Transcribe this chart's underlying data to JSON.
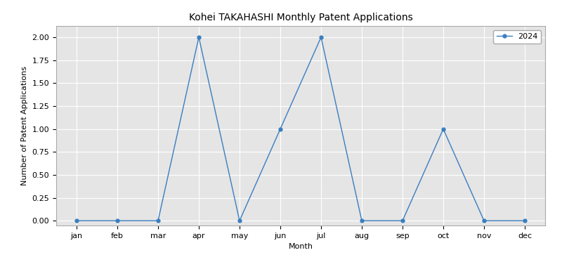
{
  "title": "Kohei TAKAHASHI Monthly Patent Applications",
  "xlabel": "Month",
  "ylabel": "Number of Patent Applications",
  "months": [
    "jan",
    "feb",
    "mar",
    "apr",
    "may",
    "jun",
    "jul",
    "aug",
    "sep",
    "oct",
    "nov",
    "dec"
  ],
  "values_2024": [
    0,
    0,
    0,
    2,
    0,
    1,
    2,
    0,
    0,
    1,
    0,
    0
  ],
  "line_color": "#3a7ebf",
  "marker": "o",
  "legend_label": "2024",
  "ylim": [
    -0.05,
    2.12
  ],
  "yticks": [
    0.0,
    0.25,
    0.5,
    0.75,
    1.0,
    1.25,
    1.5,
    1.75,
    2.0
  ],
  "figsize": [
    8.0,
    3.73
  ],
  "dpi": 100,
  "plot_bg_color": "#e5e5e5",
  "figure_bg_color": "#ffffff",
  "grid_color": "#ffffff",
  "title_fontsize": 10,
  "axis_label_fontsize": 8,
  "tick_fontsize": 8
}
